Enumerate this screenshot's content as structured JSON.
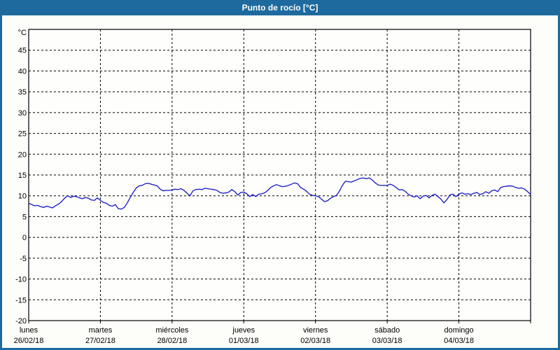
{
  "window": {
    "title": "Punto de rocío [°C]"
  },
  "colors": {
    "frame": "#1e6a9e",
    "title_text": "#ffffff",
    "content_bg": "#fdfdfa",
    "plot_bg": "#fefefc",
    "axis": "#000000",
    "grid": "#000000",
    "text": "#000000",
    "series": "#1515c8"
  },
  "chart_data": {
    "type": "line",
    "title": "Punto de rocío [°C]",
    "unit_label": "°C",
    "ylim": [
      -20,
      50
    ],
    "ytick_step": 5,
    "ytick_labels": [
      45,
      40,
      35,
      30,
      25,
      20,
      15,
      10,
      5,
      0,
      -5,
      -10,
      -15,
      -20
    ],
    "grid": "dashed",
    "legend_position": "none",
    "x_axis": {
      "days": [
        {
          "name": "lunes",
          "date": "26/02/18"
        },
        {
          "name": "martes",
          "date": "27/02/18"
        },
        {
          "name": "miércoles",
          "date": "28/02/18"
        },
        {
          "name": "jueves",
          "date": "01/03/18"
        },
        {
          "name": "viernes",
          "date": "02/03/18"
        },
        {
          "name": "sábado",
          "date": "03/03/18"
        },
        {
          "name": "domingo",
          "date": "04/03/18"
        }
      ]
    },
    "series": [
      {
        "name": "Punto de rocío",
        "unit": "°C",
        "sampling": "hourly",
        "points_per_day": 24,
        "values": [
          8.2,
          7.9,
          7.6,
          7.7,
          7.4,
          7.2,
          7.5,
          7.3,
          7.1,
          7.6,
          8.0,
          8.6,
          9.4,
          10.0,
          9.6,
          9.9,
          9.8,
          9.5,
          9.3,
          9.6,
          9.4,
          9.0,
          8.9,
          9.5,
          8.9,
          8.4,
          8.2,
          7.7,
          7.5,
          7.9,
          6.9,
          6.8,
          7.2,
          8.3,
          9.6,
          10.8,
          11.9,
          12.4,
          12.5,
          12.9,
          13.0,
          12.8,
          12.6,
          12.4,
          11.6,
          11.2,
          11.3,
          11.3,
          11.4,
          11.6,
          11.5,
          11.7,
          11.3,
          10.6,
          10.0,
          11.2,
          11.5,
          11.6,
          11.5,
          11.8,
          11.7,
          11.6,
          11.5,
          11.3,
          10.8,
          10.6,
          10.7,
          10.9,
          11.5,
          11.0,
          10.2,
          10.8,
          10.9,
          10.5,
          9.8,
          10.3,
          9.8,
          10.4,
          10.5,
          10.7,
          11.3,
          12.0,
          12.4,
          12.7,
          12.4,
          12.2,
          12.3,
          12.5,
          12.8,
          13.1,
          12.9,
          12.0,
          11.6,
          11.1,
          10.4,
          10.1,
          10.0,
          9.8,
          9.2,
          8.6,
          8.8,
          9.4,
          9.8,
          10.1,
          11.1,
          12.5,
          13.5,
          13.4,
          13.3,
          13.6,
          13.9,
          14.2,
          14.3,
          14.1,
          14.3,
          13.8,
          13.1,
          12.6,
          12.5,
          12.5,
          12.5,
          12.8,
          12.5,
          12.0,
          11.4,
          11.5,
          11.1,
          10.4,
          10.0,
          9.7,
          10.0,
          9.3,
          9.9,
          10.1,
          9.5,
          10.1,
          10.4,
          9.8,
          9.2,
          8.3,
          9.1,
          10.2,
          10.4,
          9.8,
          10.4,
          10.7,
          10.4,
          10.5,
          10.3,
          10.6,
          10.8,
          10.3,
          10.5,
          11.0,
          10.6,
          11.2,
          11.4,
          11.0,
          12.0,
          12.2,
          12.3,
          12.4,
          12.3,
          12.0,
          11.8,
          11.9,
          11.6,
          11.0,
          10.3
        ]
      }
    ]
  }
}
